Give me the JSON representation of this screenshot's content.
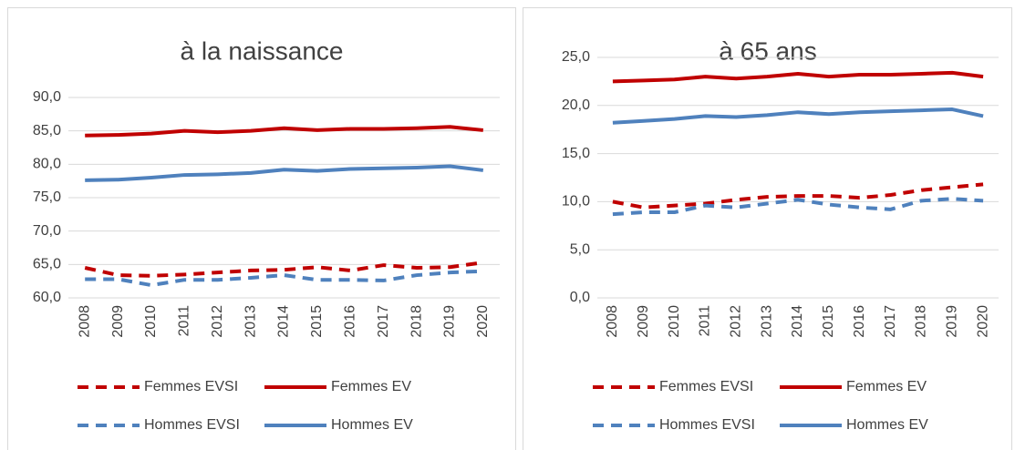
{
  "chart_data": [
    {
      "type": "line",
      "title": "à la naissance",
      "categories": [
        "2008",
        "2009",
        "2010",
        "2011",
        "2012",
        "2013",
        "2014",
        "2015",
        "2016",
        "2017",
        "2018",
        "2019",
        "2020"
      ],
      "ylim": [
        60,
        90
      ],
      "yticks": [
        {
          "value": 60,
          "label": "60,0"
        },
        {
          "value": 65,
          "label": "65,0"
        },
        {
          "value": 70,
          "label": "70,0"
        },
        {
          "value": 75,
          "label": "75,0"
        },
        {
          "value": 80,
          "label": "80,0"
        },
        {
          "value": 85,
          "label": "85,0"
        },
        {
          "value": 90,
          "label": "90,0"
        }
      ],
      "grid": true,
      "series": [
        {
          "name": "Femmes EVSI",
          "color": "#c00000",
          "dash": true,
          "values": [
            64.5,
            63.4,
            63.3,
            63.5,
            63.8,
            64.1,
            64.2,
            64.6,
            64.1,
            64.9,
            64.5,
            64.6,
            65.3
          ]
        },
        {
          "name": "Femmes EV",
          "color": "#c00000",
          "dash": false,
          "values": [
            84.3,
            84.4,
            84.6,
            85.0,
            84.8,
            85.0,
            85.4,
            85.1,
            85.3,
            85.3,
            85.4,
            85.6,
            85.1
          ]
        },
        {
          "name": "Hommes EVSI",
          "color": "#4f81bd",
          "dash": true,
          "values": [
            62.8,
            62.8,
            61.9,
            62.7,
            62.7,
            63.0,
            63.4,
            62.7,
            62.7,
            62.6,
            63.4,
            63.8,
            64.0
          ]
        },
        {
          "name": "Hommes EV",
          "color": "#4f81bd",
          "dash": false,
          "values": [
            77.6,
            77.7,
            78.0,
            78.4,
            78.5,
            78.7,
            79.2,
            79.0,
            79.3,
            79.4,
            79.5,
            79.7,
            79.1
          ]
        }
      ]
    },
    {
      "type": "line",
      "title": "à 65 ans",
      "categories": [
        "2008",
        "2009",
        "2010",
        "2011",
        "2012",
        "2013",
        "2014",
        "2015",
        "2016",
        "2017",
        "2018",
        "2019",
        "2020"
      ],
      "ylim": [
        0,
        25
      ],
      "yticks": [
        {
          "value": 0,
          "label": "0,0"
        },
        {
          "value": 5,
          "label": "5,0"
        },
        {
          "value": 10,
          "label": "10,0"
        },
        {
          "value": 15,
          "label": "15,0"
        },
        {
          "value": 20,
          "label": "20,0"
        },
        {
          "value": 25,
          "label": "25,0"
        }
      ],
      "grid": true,
      "series": [
        {
          "name": "Femmes EVSI",
          "color": "#c00000",
          "dash": true,
          "values": [
            10.0,
            9.4,
            9.6,
            9.8,
            10.2,
            10.5,
            10.6,
            10.6,
            10.4,
            10.7,
            11.2,
            11.5,
            11.8
          ]
        },
        {
          "name": "Femmes EV",
          "color": "#c00000",
          "dash": false,
          "values": [
            22.5,
            22.6,
            22.7,
            23.0,
            22.8,
            23.0,
            23.3,
            23.0,
            23.2,
            23.2,
            23.3,
            23.4,
            23.0
          ]
        },
        {
          "name": "Hommes EVSI",
          "color": "#4f81bd",
          "dash": true,
          "values": [
            8.7,
            8.9,
            8.9,
            9.6,
            9.4,
            9.8,
            10.2,
            9.7,
            9.4,
            9.2,
            10.1,
            10.3,
            10.1
          ]
        },
        {
          "name": "Hommes EV",
          "color": "#4f81bd",
          "dash": false,
          "values": [
            18.2,
            18.4,
            18.6,
            18.9,
            18.8,
            19.0,
            19.3,
            19.1,
            19.3,
            19.4,
            19.5,
            19.6,
            18.9
          ]
        }
      ]
    }
  ]
}
